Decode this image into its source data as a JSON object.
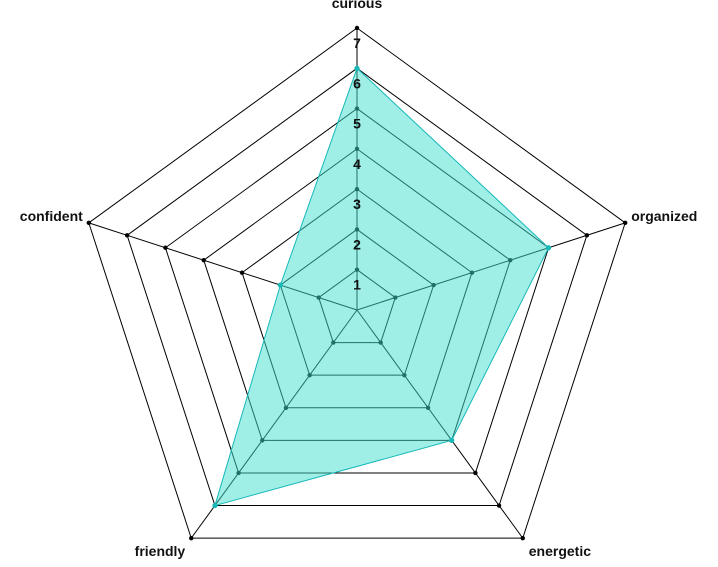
{
  "chart_data": {
    "type": "radar",
    "axes": [
      "curious",
      "organized",
      "energetic",
      "friendly",
      "confident"
    ],
    "rings": [
      1,
      2,
      3,
      4,
      5,
      6,
      7
    ],
    "tick_labels": [
      "1",
      "2",
      "3",
      "4",
      "5",
      "6",
      "7"
    ],
    "range": [
      0,
      7
    ],
    "series": [
      {
        "values": [
          6,
          5,
          4,
          6,
          2
        ]
      }
    ],
    "colors": {
      "fill": "#40e0d0",
      "fill_opacity": 0.5,
      "stroke": "#17b8b8",
      "point": "#17b8b8",
      "grid": "#000000"
    },
    "grid": true
  }
}
